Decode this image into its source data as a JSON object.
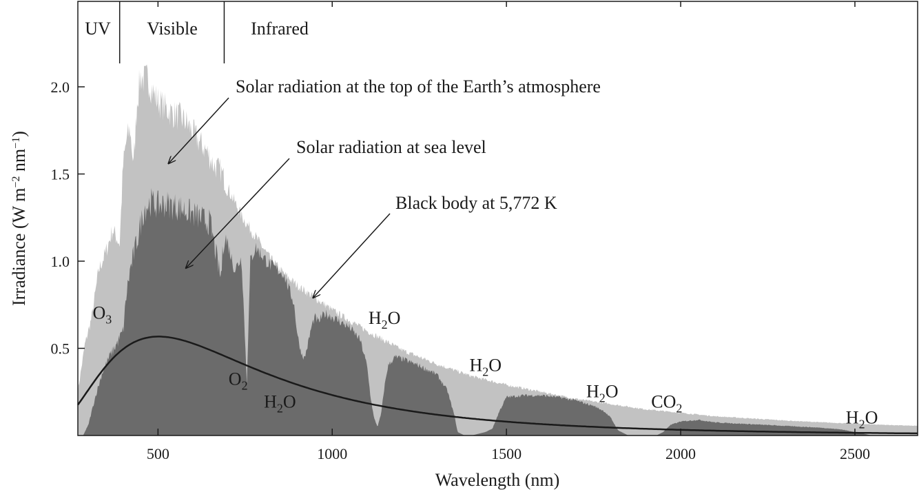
{
  "chart_data": {
    "type": "area",
    "xlabel": "Wavelength (nm)",
    "ylabel_parts": {
      "pre": "Irradiance (W m",
      "exp1": "−2",
      "mid": " nm",
      "exp2": "−1",
      "post": ")"
    },
    "xlim": [
      270,
      2680
    ],
    "ylim": [
      0,
      2.4
    ],
    "xticks": [
      500,
      1000,
      1500,
      2000,
      2500
    ],
    "xtick_labels": [
      "500",
      "1000",
      "1500",
      "2000",
      "2500"
    ],
    "yticks": [
      0.5,
      1.0,
      1.5,
      2.0
    ],
    "ytick_labels": [
      "0.5",
      "1.0",
      "1.5",
      "2.0"
    ],
    "regions": [
      {
        "label": "UV",
        "end": 390
      },
      {
        "label": "Visible",
        "end": 690
      },
      {
        "label": "Infrared",
        "end": null
      }
    ],
    "annotations": [
      {
        "text": "Solar radiation at the top of the Earth’s atmosphere",
        "arrow_to": [
          530,
          1.56
        ]
      },
      {
        "text": "Solar radiation at sea level",
        "arrow_to": [
          580,
          0.96
        ]
      },
      {
        "text": "Black body at 5,772 K",
        "arrow_to": [
          945,
          0.79
        ]
      }
    ],
    "absorption_labels": [
      {
        "base": "O",
        "sub": "3",
        "x": 340,
        "y": 0.67
      },
      {
        "base": "O",
        "sub": "2",
        "x": 730,
        "y": 0.29
      },
      {
        "base": "H",
        "sub": "2",
        "post": "O",
        "x": 850,
        "y": 0.16
      },
      {
        "base": "H",
        "sub": "2",
        "post": "O",
        "x": 1150,
        "y": 0.64
      },
      {
        "base": "H",
        "sub": "2",
        "post": "O",
        "x": 1440,
        "y": 0.37
      },
      {
        "base": "H",
        "sub": "2",
        "post": "O",
        "x": 1775,
        "y": 0.22
      },
      {
        "base": "CO",
        "sub": "2",
        "x": 1960,
        "y": 0.16
      },
      {
        "base": "H",
        "sub": "2",
        "post": "O",
        "x": 2520,
        "y": 0.07
      }
    ],
    "series": [
      {
        "name": "Solar radiation at the top of the Earth’s atmosphere",
        "color": "#c2c2c2",
        "x": [
          270,
          290,
          310,
          330,
          350,
          370,
          390,
          400,
          410,
          420,
          430,
          440,
          450,
          460,
          470,
          480,
          490,
          500,
          520,
          540,
          560,
          580,
          600,
          620,
          640,
          660,
          680,
          700,
          740,
          780,
          820,
          860,
          900,
          950,
          1000,
          1050,
          1100,
          1200,
          1300,
          1400,
          1500,
          1600,
          1700,
          1800,
          1900,
          2000,
          2100,
          2200,
          2300,
          2400,
          2500,
          2600,
          2680
        ],
        "y": [
          0.25,
          0.52,
          0.68,
          0.95,
          1.05,
          1.18,
          1.1,
          1.55,
          1.7,
          1.75,
          1.55,
          1.92,
          2.06,
          2.04,
          2.05,
          2.0,
          1.95,
          1.92,
          1.88,
          1.85,
          1.83,
          1.8,
          1.74,
          1.68,
          1.63,
          1.55,
          1.52,
          1.42,
          1.26,
          1.14,
          1.02,
          0.93,
          0.86,
          0.79,
          0.72,
          0.66,
          0.6,
          0.49,
          0.41,
          0.34,
          0.29,
          0.25,
          0.21,
          0.18,
          0.15,
          0.13,
          0.11,
          0.098,
          0.086,
          0.076,
          0.068,
          0.06,
          0.055
        ]
      },
      {
        "name": "Solar radiation at sea level",
        "color": "#6b6b6b",
        "x": [
          285,
          300,
          320,
          340,
          360,
          380,
          400,
          410,
          420,
          440,
          460,
          480,
          500,
          520,
          560,
          600,
          650,
          680,
          690,
          700,
          720,
          740,
          755,
          765,
          780,
          820,
          860,
          890,
          900,
          910,
          920,
          930,
          940,
          950,
          960,
          970,
          980,
          1000,
          1050,
          1080,
          1100,
          1110,
          1120,
          1130,
          1140,
          1150,
          1160,
          1180,
          1200,
          1250,
          1300,
          1330,
          1350,
          1360,
          1380,
          1400,
          1420,
          1440,
          1460,
          1480,
          1500,
          1550,
          1600,
          1650,
          1700,
          1750,
          1780,
          1800,
          1820,
          1850,
          1900,
          1930,
          1950,
          1970,
          2000,
          2050,
          2100,
          2200,
          2300,
          2400,
          2460,
          2500,
          2550,
          2600,
          2680
        ],
        "y": [
          0.0,
          0.06,
          0.22,
          0.36,
          0.45,
          0.52,
          0.6,
          0.82,
          0.95,
          1.12,
          1.3,
          1.34,
          1.32,
          1.33,
          1.31,
          1.27,
          1.22,
          0.9,
          1.15,
          1.1,
          0.95,
          1.02,
          0.3,
          1.0,
          1.08,
          0.98,
          0.93,
          0.76,
          0.58,
          0.48,
          0.44,
          0.52,
          0.62,
          0.68,
          0.65,
          0.68,
          0.7,
          0.68,
          0.62,
          0.55,
          0.4,
          0.22,
          0.1,
          0.05,
          0.12,
          0.28,
          0.4,
          0.45,
          0.44,
          0.4,
          0.35,
          0.26,
          0.12,
          0.02,
          0.0,
          0.0,
          0.01,
          0.02,
          0.04,
          0.14,
          0.22,
          0.23,
          0.23,
          0.22,
          0.2,
          0.17,
          0.14,
          0.1,
          0.03,
          0.0,
          0.0,
          0.0,
          0.02,
          0.06,
          0.08,
          0.09,
          0.075,
          0.065,
          0.055,
          0.045,
          0.035,
          0.02,
          0.0,
          0.0,
          0.0
        ]
      },
      {
        "name": "Black body at 5,772 K",
        "color": "#1a1a1a",
        "temperature_K": 5772,
        "scale": 2.16e-05
      }
    ]
  }
}
